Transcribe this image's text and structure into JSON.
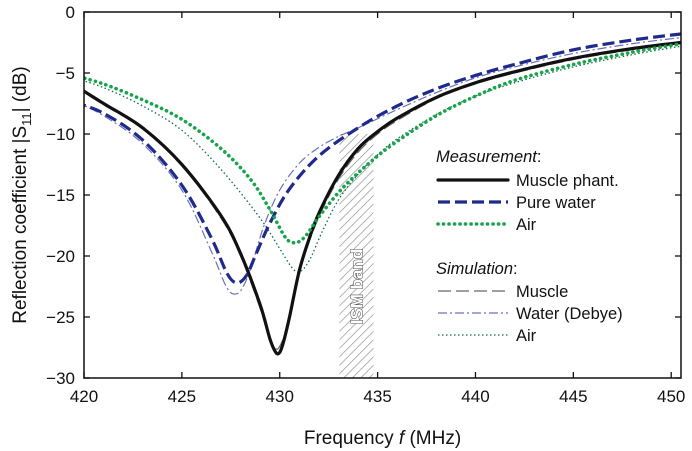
{
  "chart_data": {
    "type": "line",
    "xlabel_main": "Frequency ",
    "xlabel_var": "f",
    "xlabel_unit": " (MHz)",
    "ylabel_main": "Reflection coefficient |S",
    "ylabel_sub": "11",
    "ylabel_tail": "| (dB)",
    "xlim": [
      420,
      450.5
    ],
    "ylim": [
      -30,
      0
    ],
    "xticks": [
      420,
      425,
      430,
      435,
      440,
      445,
      450
    ],
    "yticks": [
      0,
      -5,
      -10,
      -15,
      -20,
      -25,
      -30
    ],
    "grid": false,
    "band": {
      "label": "ISM band",
      "x_range": [
        433.05,
        434.79
      ],
      "y_range": [
        -30,
        -10
      ]
    },
    "legend": {
      "measurement_title": "Measurement",
      "simulation_title": "Simulation",
      "title_suffix": ":"
    },
    "series": [
      {
        "name": "Muscle phant.",
        "group": "measurement",
        "color": "#111111",
        "style": "solid-thick",
        "x": [
          419.5,
          421,
          423,
          425,
          427,
          428,
          429,
          429.5,
          429.8,
          430,
          430.2,
          430.5,
          431,
          431.5,
          432,
          433,
          434,
          435,
          436,
          438,
          440,
          442,
          445,
          448,
          450.5
        ],
        "y": [
          -6,
          -7.5,
          -9.5,
          -12.5,
          -16.7,
          -19.8,
          -24,
          -26.8,
          -27.9,
          -27.9,
          -27,
          -25,
          -21.2,
          -18.6,
          -16.5,
          -13.4,
          -11.2,
          -9.8,
          -8.7,
          -7,
          -5.8,
          -4.9,
          -3.8,
          -3,
          -2.5
        ]
      },
      {
        "name": "Pure water",
        "group": "measurement",
        "color": "#1f2b8a",
        "style": "dashed-thick",
        "x": [
          419.5,
          421,
          423,
          425,
          426.5,
          427.3,
          427.8,
          428.3,
          428.8,
          429.5,
          430.5,
          432,
          434,
          436,
          438,
          440,
          442,
          445,
          448,
          450.5
        ],
        "y": [
          -7.4,
          -8.3,
          -10.5,
          -14.2,
          -18.5,
          -21.4,
          -22.2,
          -21.6,
          -19.8,
          -17.3,
          -14.5,
          -11.8,
          -9.5,
          -7.7,
          -6.3,
          -5.2,
          -4.3,
          -3.1,
          -2.3,
          -1.8
        ]
      },
      {
        "name": "Air",
        "group": "measurement",
        "color": "#16a34a",
        "style": "dotted-thick",
        "x": [
          419.5,
          421,
          423,
          425,
          427,
          428.5,
          429.5,
          430.3,
          430.8,
          431.3,
          432,
          433,
          434,
          435,
          436,
          438,
          440,
          442,
          445,
          448,
          450.5
        ],
        "y": [
          -5.2,
          -5.9,
          -7.2,
          -8.8,
          -11.2,
          -13.7,
          -16.2,
          -18.5,
          -18.9,
          -18.4,
          -16.8,
          -14.8,
          -13.2,
          -11.8,
          -10.6,
          -8.5,
          -6.9,
          -5.6,
          -4.3,
          -3.3,
          -2.6
        ]
      },
      {
        "name": "Muscle",
        "group": "simulation",
        "color": "#666666",
        "style": "long-dash-thin",
        "x": [
          419.5,
          421,
          423,
          425,
          427,
          428,
          429,
          429.5,
          429.8,
          430,
          430.3,
          430.7,
          431.2,
          432,
          433,
          434,
          435,
          436,
          438,
          440,
          442,
          445,
          448,
          450.5
        ],
        "y": [
          -6.1,
          -7.6,
          -9.6,
          -12.6,
          -16.9,
          -20,
          -24.3,
          -26.9,
          -27.6,
          -27.4,
          -26.2,
          -23.6,
          -20.3,
          -16.8,
          -13.7,
          -11.5,
          -10,
          -8.9,
          -7.1,
          -5.9,
          -5,
          -3.9,
          -3.1,
          -2.6
        ]
      },
      {
        "name": "Water (Debye)",
        "group": "simulation",
        "color": "#6a6fc0",
        "style": "dash-dot-thin",
        "x": [
          419.5,
          421,
          423,
          425,
          426.5,
          427.3,
          427.8,
          428.2,
          428.6,
          429.2,
          430,
          431,
          432,
          433,
          434,
          436,
          438,
          440,
          442,
          445,
          448,
          450.5
        ],
        "y": [
          -7.3,
          -8.5,
          -10.8,
          -14.6,
          -19.6,
          -22.6,
          -23.1,
          -22.3,
          -20.6,
          -17.5,
          -14.6,
          -12.4,
          -11.1,
          -10.2,
          -9.5,
          -8,
          -6.6,
          -5.4,
          -4.5,
          -3.4,
          -2.6,
          -2.1
        ]
      },
      {
        "name": "Air",
        "group": "simulation",
        "color": "#0f6b4f",
        "style": "dotted-thin",
        "x": [
          419.5,
          421,
          423,
          425,
          427,
          429,
          430,
          430.6,
          431,
          431.5,
          432.2,
          433,
          434,
          435,
          436,
          438,
          440,
          442,
          445,
          448,
          450.5
        ],
        "y": [
          -5.4,
          -6.2,
          -7.7,
          -9.7,
          -12.9,
          -16.9,
          -19.4,
          -20.9,
          -21.3,
          -20.4,
          -17.9,
          -15.4,
          -13.3,
          -11.7,
          -10.4,
          -8.4,
          -6.9,
          -5.8,
          -4.5,
          -3.5,
          -2.8
        ]
      }
    ]
  }
}
